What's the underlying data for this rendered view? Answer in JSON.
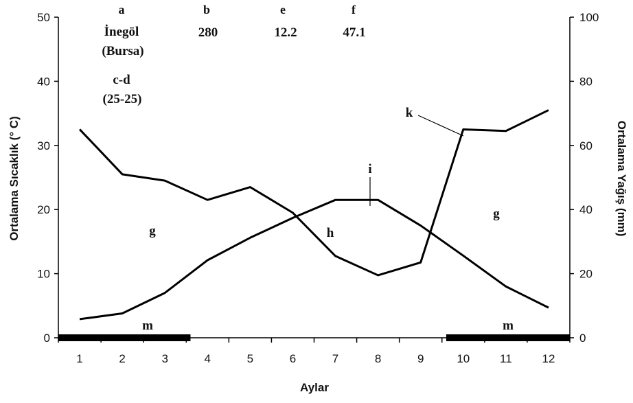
{
  "chart_data": {
    "type": "line",
    "xlabel": "Aylar",
    "ylabel_left": "Ortalama Sıcaklık (° C)",
    "ylabel_right": "Ortalama Yağış (mm)",
    "categories": [
      "1",
      "2",
      "3",
      "4",
      "5",
      "6",
      "7",
      "8",
      "9",
      "10",
      "11",
      "12"
    ],
    "y_left_range": [
      0,
      50
    ],
    "y_left_ticks": [
      "0",
      "10",
      "20",
      "30",
      "40",
      "50"
    ],
    "y_right_range": [
      0,
      100
    ],
    "y_right_ticks": [
      "0",
      "20",
      "40",
      "60",
      "80",
      "100"
    ],
    "series": [
      {
        "axis": "left",
        "values": [
          2.9,
          3.8,
          7.0,
          12.1,
          15.6,
          18.7,
          21.5,
          21.5,
          17.5,
          12.8,
          8.0,
          4.7
        ]
      },
      {
        "axis": "right",
        "values": [
          65,
          51,
          49,
          43,
          47,
          39,
          25.5,
          19.5,
          23.5,
          65,
          64.5,
          71
        ]
      }
    ],
    "dry_periods": [
      [
        0.5,
        3.6
      ],
      [
        9.6,
        12.5
      ]
    ],
    "annotations": {
      "a": "a",
      "station_line1": "İnegöl",
      "station_line2": "(Bursa)",
      "b": "b",
      "b_value": "280",
      "e": "e",
      "e_value": "12.2",
      "f": "f",
      "f_value": "47.1",
      "cd": "c-d",
      "cd_value": "(25-25)",
      "k": "k",
      "i": "i",
      "g": "g",
      "h": "h",
      "m": "m"
    }
  }
}
